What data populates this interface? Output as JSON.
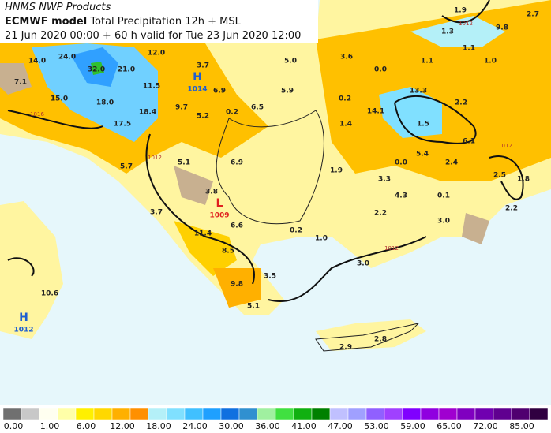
{
  "header": {
    "source": "HNMS NWP Products",
    "model": "ECMWF model",
    "product": "Total Precipitation 12h + MSL",
    "validity": "21 Jun 2020 00:00 + 60 h valid for Tue 23 Jun 2020 12:00"
  },
  "map": {
    "labels": [
      "14.0",
      "24.0",
      "32.0",
      "21.0",
      "12.0",
      "7.1",
      "15.0",
      "18.0",
      "11.5",
      "17.5",
      "18.4",
      "3.7",
      "6.9",
      "9.7",
      "5.2",
      "0.2",
      "6.5",
      "5.0",
      "5.9",
      "3.6",
      "0.0",
      "0.2",
      "14.1",
      "13.3",
      "1.5",
      "2.2",
      "1.4",
      "1.9",
      "1.3",
      "1.1",
      "1.1",
      "1.0",
      "9.8",
      "2.7",
      "5.7",
      "6.9",
      "5.1",
      "3.8",
      "3.7",
      "6.6",
      "11.4",
      "0.2",
      "1.0",
      "1.9",
      "3.3",
      "4.3",
      "0.0",
      "5.4",
      "2.4",
      "6.1",
      "0.1",
      "2.2",
      "3.0",
      "2.5",
      "1.8",
      "2.2",
      "8.5",
      "3.5",
      "9.8",
      "5.1",
      "10.6",
      "2.9",
      "2.8",
      "3.0"
    ],
    "isobars": [
      "1016",
      "1012",
      "1012",
      "1012",
      "1012"
    ],
    "centers": [
      {
        "symbol": "H",
        "pressure": "1014"
      },
      {
        "symbol": "L",
        "pressure": "1009"
      },
      {
        "symbol": "H",
        "pressure": "1012"
      }
    ]
  },
  "colorbar": {
    "colors": [
      "#707070",
      "#c8c8c8",
      "#fffff0",
      "#ffffa8",
      "#fff000",
      "#ffd800",
      "#ffb000",
      "#ff9000",
      "#b4f0f8",
      "#80e0ff",
      "#40c0ff",
      "#1ea0ff",
      "#1070e0",
      "#3090d0",
      "#a0f0a0",
      "#40e040",
      "#10b010",
      "#008000",
      "#c0c0ff",
      "#a0a0ff",
      "#9060ff",
      "#a040ff",
      "#8000ff",
      "#9000e0",
      "#a000d0",
      "#8000c0",
      "#7000b0",
      "#600090",
      "#500070",
      "#300040"
    ],
    "labels": [
      "0.00",
      "1.00",
      "6.00",
      "12.00",
      "18.00",
      "24.00",
      "30.00",
      "36.00",
      "41.00",
      "47.00",
      "53.00",
      "59.00",
      "65.00",
      "72.00",
      "85.00"
    ]
  }
}
